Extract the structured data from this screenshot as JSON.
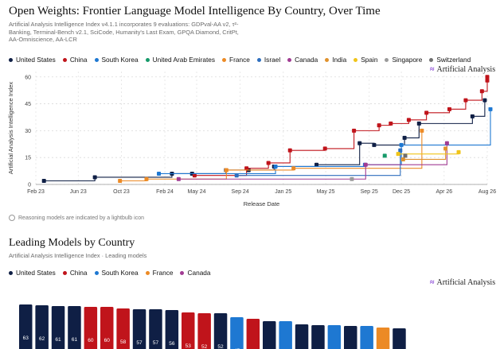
{
  "chart1": {
    "title": "Open Weights: Frontier Language Model Intelligence By Country, Over Time",
    "subtitle": "Artificial Analysis Intelligence Index v4.1.1 incorporates 9 evaluations: GDPval-AA v2, τ²-Banking, Terminal-Bench v2.1, SciCode, Humanity's Last Exam, GPQA Diamond, CritPt, AA-Omniscience, AA-LCR",
    "brand": "Artificial Analysis",
    "note": "Reasoning models are indicated by a lightbulb icon",
    "legend": [
      {
        "name": "United States",
        "color": "#0f1f45"
      },
      {
        "name": "China",
        "color": "#c0141b"
      },
      {
        "name": "South Korea",
        "color": "#1e78d2"
      },
      {
        "name": "United Arab Emirates",
        "color": "#169a6a"
      },
      {
        "name": "France",
        "color": "#ec8a25"
      },
      {
        "name": "Israel",
        "color": "#2e6fbf"
      },
      {
        "name": "Canada",
        "color": "#a13c93"
      },
      {
        "name": "India",
        "color": "#e0922d"
      },
      {
        "name": "Spain",
        "color": "#f0c419"
      },
      {
        "name": "Singapore",
        "color": "#9b9b9b"
      },
      {
        "name": "Switzerland",
        "color": "#6f6f6f"
      }
    ]
  },
  "chart_data": [
    {
      "type": "line",
      "title": "Open Weights: Frontier Language Model Intelligence By Country, Over Time",
      "xlabel": "Release Date",
      "ylabel": "Artificial Analysis Intelligence Index",
      "ylim": [
        0,
        63
      ],
      "yticks": [
        "0",
        "15",
        "30",
        "45",
        "60"
      ],
      "xticks": [
        "Feb 23",
        "Jun 23",
        "Oct 23",
        "Feb 24",
        "May 24",
        "Sep 24",
        "Jan 25",
        "May 25",
        "Sep 25",
        "Dec 25",
        "Apr 26",
        "Aug 26"
      ],
      "xtick_dates": [
        "2023-02-01",
        "2023-06-01",
        "2023-10-01",
        "2024-02-01",
        "2024-05-01",
        "2024-09-01",
        "2025-01-01",
        "2025-05-01",
        "2025-09-01",
        "2025-12-01",
        "2026-04-01",
        "2026-08-01"
      ],
      "grid": true,
      "series": [
        {
          "name": "United States",
          "color": "#0f1f45",
          "points": [
            [
              "2023-02-24",
              2
            ],
            [
              "2023-07-18",
              4
            ],
            [
              "2024-02-21",
              6
            ],
            [
              "2024-04-18",
              6
            ],
            [
              "2024-07-23",
              8
            ],
            [
              "2024-09-25",
              8
            ],
            [
              "2024-12-06",
              10
            ],
            [
              "2025-04-05",
              11
            ],
            [
              "2025-08-05",
              23
            ],
            [
              "2025-09-15",
              22
            ],
            [
              "2025-12-10",
              26
            ],
            [
              "2026-01-20",
              34
            ],
            [
              "2026-06-20",
              38
            ],
            [
              "2026-07-25",
              47
            ]
          ]
        },
        {
          "name": "China",
          "color": "#c0141b",
          "points": [
            [
              "2024-04-25",
              5
            ],
            [
              "2024-09-19",
              9
            ],
            [
              "2024-11-20",
              12
            ],
            [
              "2025-01-20",
              19
            ],
            [
              "2025-04-29",
              20
            ],
            [
              "2025-07-20",
              30
            ],
            [
              "2025-09-29",
              33
            ],
            [
              "2025-11-01",
              34
            ],
            [
              "2025-12-22",
              36
            ],
            [
              "2026-02-10",
              40
            ],
            [
              "2026-04-16",
              42
            ],
            [
              "2026-06-01",
              47
            ],
            [
              "2026-07-17",
              52
            ],
            [
              "2026-08-01",
              58
            ],
            [
              "2026-08-01",
              60
            ]
          ]
        },
        {
          "name": "South Korea",
          "color": "#1e78d2",
          "points": [
            [
              "2024-01-15",
              6
            ],
            [
              "2024-12-10",
              10
            ],
            [
              "2025-08-20",
              11
            ],
            [
              "2025-12-01",
              22
            ],
            [
              "2026-08-10",
              42
            ]
          ]
        },
        {
          "name": "United Arab Emirates",
          "color": "#169a6a",
          "points": [
            [
              "2025-10-15",
              16
            ]
          ]
        },
        {
          "name": "France",
          "color": "#ec8a25",
          "points": [
            [
              "2023-09-27",
              2
            ],
            [
              "2023-12-11",
              3
            ],
            [
              "2024-07-24",
              8
            ],
            [
              "2025-01-30",
              9
            ],
            [
              "2026-01-28",
              30
            ]
          ]
        },
        {
          "name": "Israel",
          "color": "#2e6fbf",
          "points": [
            [
              "2024-08-22",
              5
            ],
            [
              "2025-11-28",
              19
            ]
          ]
        },
        {
          "name": "Canada",
          "color": "#a13c93",
          "points": [
            [
              "2024-03-11",
              3
            ],
            [
              "2025-08-22",
              11
            ],
            [
              "2026-04-09",
              23
            ]
          ]
        },
        {
          "name": "India",
          "color": "#e0922d",
          "points": [
            [
              "2025-12-06",
              14
            ],
            [
              "2026-04-05",
              20
            ]
          ]
        },
        {
          "name": "Spain",
          "color": "#f0c419",
          "points": [
            [
              "2025-11-22",
              17
            ],
            [
              "2026-05-12",
              18
            ]
          ]
        },
        {
          "name": "Singapore",
          "color": "#9b9b9b",
          "points": [
            [
              "2025-07-14",
              3
            ]
          ]
        },
        {
          "name": "Switzerland",
          "color": "#6f6f6f",
          "points": [
            [
              "2025-12-12",
              16
            ]
          ]
        }
      ]
    },
    {
      "type": "bar",
      "title": "Leading Models by Country",
      "subtitle": "Artificial Analysis Intelligence Index · Leading models",
      "legend": [
        {
          "name": "United States",
          "color": "#0f1f45"
        },
        {
          "name": "China",
          "color": "#c0141b"
        },
        {
          "name": "South Korea",
          "color": "#1e78d2"
        },
        {
          "name": "France",
          "color": "#ec8a25"
        },
        {
          "name": "Canada",
          "color": "#a13c93"
        }
      ],
      "values": [
        63,
        62,
        61,
        61,
        60,
        60,
        58,
        57,
        57,
        56,
        53,
        52,
        52,
        47,
        45,
        42,
        42,
        38,
        37,
        37,
        36,
        36,
        34,
        33
      ],
      "countries": [
        "United States",
        "United States",
        "United States",
        "United States",
        "China",
        "China",
        "China",
        "United States",
        "United States",
        "United States",
        "China",
        "China",
        "United States",
        "South Korea",
        "China",
        "United States",
        "South Korea",
        "United States",
        "United States",
        "South Korea",
        "United States",
        "South Korea",
        "France",
        "United States"
      ]
    }
  ]
}
